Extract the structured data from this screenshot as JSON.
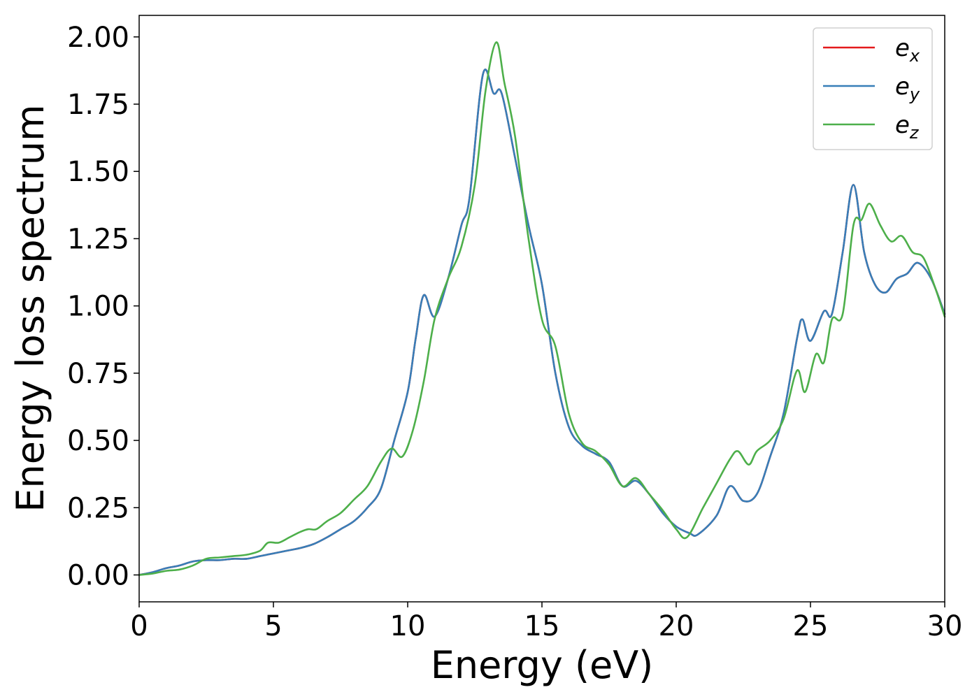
{
  "chart_data": {
    "type": "line",
    "xlabel": "Energy (eV)",
    "ylabel": "Energy loss spectrum",
    "xlim": [
      0,
      30
    ],
    "ylim": [
      -0.1,
      2.08
    ],
    "xticks": [
      0,
      5,
      10,
      15,
      20,
      25,
      30
    ],
    "yticks": [
      0.0,
      0.25,
      0.5,
      0.75,
      1.0,
      1.25,
      1.5,
      1.75,
      2.0
    ],
    "ytick_labels": [
      "0.00",
      "0.25",
      "0.50",
      "0.75",
      "1.00",
      "1.25",
      "1.50",
      "1.75",
      "2.00"
    ],
    "grid": false,
    "legend_position": "top-right",
    "series": [
      {
        "name": "e_x",
        "label_base": "e",
        "label_sub": "x",
        "color": "#e41a1c",
        "x": [
          0,
          0.5,
          1,
          1.5,
          2,
          2.5,
          3,
          3.5,
          4,
          4.5,
          5,
          5.5,
          6,
          6.5,
          7,
          7.5,
          8,
          8.5,
          9,
          9.5,
          10,
          10.3,
          10.6,
          11,
          11.5,
          12,
          12.3,
          12.8,
          13.2,
          13.5,
          14,
          14.5,
          15,
          15.5,
          16,
          16.5,
          17,
          17.5,
          18,
          18.5,
          19,
          19.5,
          20,
          20.5,
          20.8,
          21.5,
          22,
          22.5,
          23,
          23.5,
          24,
          24.5,
          24.7,
          25,
          25.5,
          25.8,
          26.2,
          26.6,
          27,
          27.4,
          27.8,
          28.2,
          28.6,
          29,
          29.5,
          30
        ],
        "y": [
          0.0,
          0.01,
          0.025,
          0.035,
          0.05,
          0.055,
          0.055,
          0.06,
          0.06,
          0.07,
          0.08,
          0.09,
          0.1,
          0.115,
          0.14,
          0.17,
          0.2,
          0.25,
          0.32,
          0.5,
          0.68,
          0.88,
          1.04,
          0.96,
          1.1,
          1.3,
          1.4,
          1.86,
          1.79,
          1.79,
          1.55,
          1.3,
          1.08,
          0.75,
          0.55,
          0.48,
          0.45,
          0.42,
          0.33,
          0.35,
          0.3,
          0.23,
          0.18,
          0.155,
          0.15,
          0.22,
          0.33,
          0.275,
          0.3,
          0.44,
          0.6,
          0.88,
          0.95,
          0.87,
          0.98,
          0.97,
          1.2,
          1.45,
          1.2,
          1.08,
          1.05,
          1.1,
          1.12,
          1.16,
          1.1,
          0.97
        ]
      },
      {
        "name": "e_y",
        "label_base": "e",
        "label_sub": "y",
        "color": "#377eb8",
        "x": [
          0,
          0.5,
          1,
          1.5,
          2,
          2.5,
          3,
          3.5,
          4,
          4.5,
          5,
          5.5,
          6,
          6.5,
          7,
          7.5,
          8,
          8.5,
          9,
          9.5,
          10,
          10.3,
          10.6,
          11,
          11.5,
          12,
          12.3,
          12.8,
          13.2,
          13.5,
          14,
          14.5,
          15,
          15.5,
          16,
          16.5,
          17,
          17.5,
          18,
          18.5,
          19,
          19.5,
          20,
          20.5,
          20.8,
          21.5,
          22,
          22.5,
          23,
          23.5,
          24,
          24.5,
          24.7,
          25,
          25.5,
          25.8,
          26.2,
          26.6,
          27,
          27.4,
          27.8,
          28.2,
          28.6,
          29,
          29.5,
          30
        ],
        "y": [
          0.0,
          0.01,
          0.025,
          0.035,
          0.05,
          0.055,
          0.055,
          0.06,
          0.06,
          0.07,
          0.08,
          0.09,
          0.1,
          0.115,
          0.14,
          0.17,
          0.2,
          0.25,
          0.32,
          0.5,
          0.68,
          0.88,
          1.04,
          0.96,
          1.1,
          1.3,
          1.4,
          1.86,
          1.79,
          1.79,
          1.55,
          1.3,
          1.08,
          0.75,
          0.55,
          0.48,
          0.45,
          0.42,
          0.33,
          0.35,
          0.3,
          0.23,
          0.18,
          0.155,
          0.15,
          0.22,
          0.33,
          0.275,
          0.3,
          0.44,
          0.6,
          0.88,
          0.95,
          0.87,
          0.98,
          0.97,
          1.2,
          1.45,
          1.2,
          1.08,
          1.05,
          1.1,
          1.12,
          1.16,
          1.1,
          0.97
        ]
      },
      {
        "name": "e_z",
        "label_base": "e",
        "label_sub": "z",
        "color": "#4daf4a",
        "x": [
          0,
          0.5,
          1,
          1.5,
          2,
          2.5,
          3,
          3.5,
          4,
          4.5,
          4.8,
          5.2,
          5.6,
          6,
          6.3,
          6.6,
          7,
          7.5,
          8,
          8.5,
          9,
          9.4,
          9.8,
          10.2,
          10.6,
          11,
          11.5,
          12,
          12.5,
          12.9,
          13.3,
          13.6,
          14,
          14.5,
          15,
          15.5,
          16,
          16.5,
          17,
          17.5,
          18,
          18.5,
          19,
          19.5,
          20,
          20.4,
          21,
          21.5,
          22,
          22.3,
          22.7,
          23,
          23.5,
          24,
          24.5,
          24.8,
          25.2,
          25.5,
          25.8,
          26.2,
          26.6,
          26.9,
          27.2,
          27.6,
          28,
          28.4,
          28.8,
          29.2,
          29.6,
          30
        ],
        "y": [
          0.0,
          0.005,
          0.015,
          0.02,
          0.035,
          0.06,
          0.065,
          0.07,
          0.075,
          0.09,
          0.12,
          0.12,
          0.14,
          0.16,
          0.17,
          0.17,
          0.2,
          0.23,
          0.28,
          0.33,
          0.42,
          0.47,
          0.44,
          0.54,
          0.72,
          0.95,
          1.1,
          1.22,
          1.45,
          1.8,
          1.98,
          1.83,
          1.63,
          1.25,
          0.95,
          0.85,
          0.6,
          0.49,
          0.46,
          0.41,
          0.33,
          0.36,
          0.3,
          0.24,
          0.17,
          0.14,
          0.25,
          0.34,
          0.43,
          0.46,
          0.41,
          0.46,
          0.5,
          0.58,
          0.76,
          0.68,
          0.82,
          0.79,
          0.95,
          0.97,
          1.3,
          1.32,
          1.38,
          1.3,
          1.24,
          1.26,
          1.2,
          1.18,
          1.08,
          0.96
        ]
      }
    ]
  }
}
